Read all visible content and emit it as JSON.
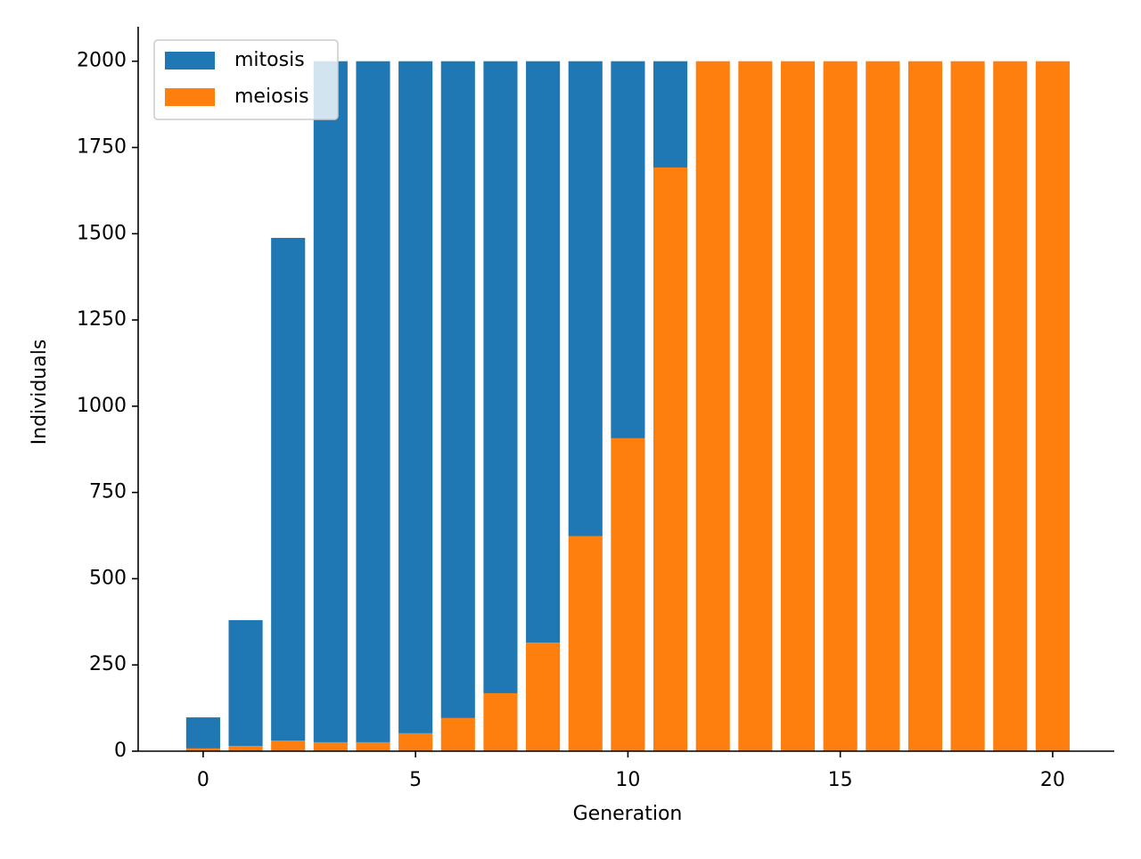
{
  "chart_data": {
    "type": "stacked-bar",
    "x_label": "Generation",
    "y_label": "Individuals",
    "x": [
      0,
      1,
      2,
      3,
      4,
      5,
      6,
      7,
      8,
      9,
      10,
      11,
      12,
      13,
      14,
      15,
      16,
      17,
      18,
      19,
      20
    ],
    "series": [
      {
        "name": "mitosis",
        "color": "#1f77b4",
        "values": [
          90,
          365,
          1457,
          1974,
          1974,
          1948,
          1904,
          1832,
          1685,
          1377,
          1093,
          308,
          0,
          0,
          0,
          0,
          0,
          0,
          0,
          0,
          0
        ]
      },
      {
        "name": "meiosis",
        "color": "#ff7f0e",
        "values": [
          8,
          15,
          31,
          26,
          26,
          52,
          96,
          168,
          315,
          623,
          907,
          1692,
          2000,
          2000,
          2000,
          2000,
          2000,
          2000,
          2000,
          2000,
          2000
        ]
      }
    ],
    "xlim": [
      -1.53,
      21.45
    ],
    "xticks": [
      0,
      5,
      10,
      15,
      20
    ],
    "ylim": [
      0,
      2100
    ],
    "yticks": [
      0,
      250,
      500,
      750,
      1000,
      1250,
      1500,
      1750,
      2000
    ],
    "legend": "upper-left",
    "grid": false
  }
}
